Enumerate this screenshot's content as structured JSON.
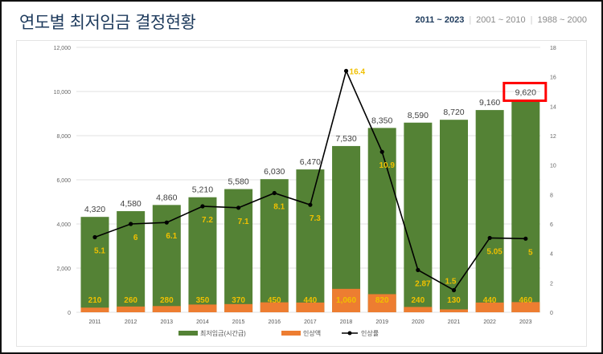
{
  "header": {
    "title": "연도별 최저임금 결정현황",
    "tabs": [
      {
        "label": "2011 ~ 2023",
        "active": true
      },
      {
        "label": "2001 ~ 2010",
        "active": false
      },
      {
        "label": "1988 ~ 2000",
        "active": false
      }
    ]
  },
  "chart_data": {
    "type": "bar",
    "categories": [
      "2011",
      "2012",
      "2013",
      "2014",
      "2015",
      "2016",
      "2017",
      "2018",
      "2019",
      "2020",
      "2021",
      "2022",
      "2023"
    ],
    "series": [
      {
        "name": "최저임금(시간급)",
        "type": "bar",
        "color": "#548235",
        "values": [
          4320,
          4580,
          4860,
          5210,
          5580,
          6030,
          6470,
          7530,
          8350,
          8590,
          8720,
          9160,
          9620
        ],
        "labels": [
          "4,320",
          "4,580",
          "4,860",
          "5,210",
          "5,580",
          "6,030",
          "6,470",
          "7,530",
          "8,350",
          "8,590",
          "8,720",
          "9,160",
          "9,620"
        ]
      },
      {
        "name": "인상액",
        "type": "bar",
        "color": "#ED7D31",
        "values": [
          210,
          260,
          280,
          350,
          370,
          450,
          440,
          1060,
          820,
          240,
          130,
          440,
          460
        ],
        "labels": [
          "210",
          "260",
          "280",
          "350",
          "370",
          "450",
          "440",
          "1,060",
          "820",
          "240",
          "130",
          "440",
          "460"
        ]
      },
      {
        "name": "인상률",
        "type": "line",
        "axis": "right",
        "color": "#000000",
        "label_color": "#F0C000",
        "values": [
          5.1,
          6,
          6.1,
          7.2,
          7.1,
          8.1,
          7.3,
          16.4,
          10.9,
          2.87,
          1.5,
          5.05,
          5
        ],
        "labels": [
          "5.1",
          "6",
          "6.1",
          "7.2",
          "7.1",
          "8.1",
          "7.3",
          "16.4",
          "10.9",
          "2.87",
          "1.5",
          "5.05",
          "5"
        ]
      }
    ],
    "y_left": {
      "range": [
        0,
        12000
      ],
      "ticks": [
        "0",
        "2,000",
        "4,000",
        "6,000",
        "8,000",
        "10,000",
        "12,000"
      ]
    },
    "y_right": {
      "range": [
        0,
        18
      ],
      "ticks": [
        "0",
        "2",
        "4",
        "6",
        "8",
        "10",
        "12",
        "14",
        "16",
        "18"
      ]
    },
    "grid": true,
    "legend": "bottom",
    "highlight": {
      "category": "2023",
      "color": "#FF0000"
    }
  }
}
